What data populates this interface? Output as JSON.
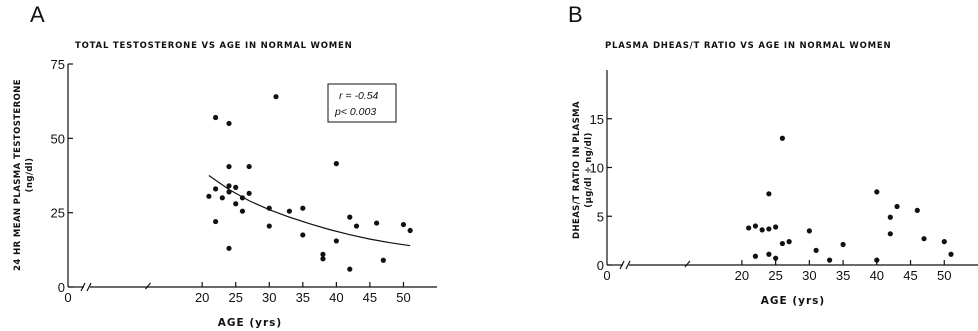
{
  "chart_data": [
    {
      "panel": "A",
      "type": "scatter",
      "title": "TOTAL TESTOSTERONE VS AGE IN NORMAL WOMEN",
      "xlabel": "AGE (yrs)",
      "ylabel": "24 HR MEAN PLASMA TESTOSTERONE",
      "ylabel_unit": "(ng/dl)",
      "xlim": [
        0,
        55
      ],
      "ylim": [
        0,
        75
      ],
      "xticks": [
        0,
        20,
        25,
        30,
        35,
        40,
        45,
        50
      ],
      "yticks": [
        0,
        25,
        50,
        75
      ],
      "annotation": [
        "r = -0.54",
        "p< 0.003"
      ],
      "points": [
        {
          "x": 21,
          "y": 30.5
        },
        {
          "x": 22,
          "y": 57
        },
        {
          "x": 22,
          "y": 33
        },
        {
          "x": 22,
          "y": 22
        },
        {
          "x": 23,
          "y": 30
        },
        {
          "x": 24,
          "y": 55
        },
        {
          "x": 24,
          "y": 40.5
        },
        {
          "x": 24,
          "y": 34
        },
        {
          "x": 24,
          "y": 32
        },
        {
          "x": 24,
          "y": 13
        },
        {
          "x": 25,
          "y": 33.5
        },
        {
          "x": 25,
          "y": 28
        },
        {
          "x": 26,
          "y": 30
        },
        {
          "x": 26,
          "y": 25.5
        },
        {
          "x": 27,
          "y": 40.5
        },
        {
          "x": 27,
          "y": 31.5
        },
        {
          "x": 30,
          "y": 26.5
        },
        {
          "x": 30,
          "y": 20.5
        },
        {
          "x": 31,
          "y": 64
        },
        {
          "x": 33,
          "y": 25.5
        },
        {
          "x": 35,
          "y": 26.5
        },
        {
          "x": 35,
          "y": 17.5
        },
        {
          "x": 38,
          "y": 11
        },
        {
          "x": 38,
          "y": 9.5
        },
        {
          "x": 40,
          "y": 41.5
        },
        {
          "x": 40,
          "y": 15.5
        },
        {
          "x": 42,
          "y": 23.5
        },
        {
          "x": 42,
          "y": 6
        },
        {
          "x": 43,
          "y": 20.5
        },
        {
          "x": 46,
          "y": 21.5
        },
        {
          "x": 47,
          "y": 9
        },
        {
          "x": 50,
          "y": 21
        },
        {
          "x": 51,
          "y": 19
        }
      ],
      "fit_curve": [
        {
          "x": 21,
          "y": 37.5
        },
        {
          "x": 24,
          "y": 32.8
        },
        {
          "x": 27,
          "y": 29
        },
        {
          "x": 30,
          "y": 26
        },
        {
          "x": 33,
          "y": 23.5
        },
        {
          "x": 36,
          "y": 21.3
        },
        {
          "x": 39,
          "y": 19.3
        },
        {
          "x": 42,
          "y": 17.6
        },
        {
          "x": 45,
          "y": 16.1
        },
        {
          "x": 48,
          "y": 14.9
        },
        {
          "x": 51,
          "y": 13.9
        }
      ]
    },
    {
      "panel": "B",
      "type": "scatter",
      "title": "PLASMA DHEAS/T RATIO VS AGE IN NORMAL WOMEN",
      "xlabel": "AGE (yrs)",
      "ylabel": "DHEAS/T RATIO IN PLASMA",
      "ylabel_unit": "(µg/dl ÷ ng/dl)",
      "xlim": [
        0,
        55
      ],
      "ylim": [
        0,
        20
      ],
      "xticks": [
        0,
        20,
        25,
        30,
        35,
        40,
        45,
        50
      ],
      "yticks": [
        0,
        5,
        10,
        15
      ],
      "points": [
        {
          "x": 21,
          "y": 3.8
        },
        {
          "x": 22,
          "y": 4.0
        },
        {
          "x": 22,
          "y": 0.9
        },
        {
          "x": 23,
          "y": 3.6
        },
        {
          "x": 24,
          "y": 3.7
        },
        {
          "x": 24,
          "y": 7.3
        },
        {
          "x": 24,
          "y": 1.1
        },
        {
          "x": 25,
          "y": 3.9
        },
        {
          "x": 25,
          "y": 0.7
        },
        {
          "x": 26,
          "y": 13.0
        },
        {
          "x": 26,
          "y": 2.2
        },
        {
          "x": 27,
          "y": 2.4
        },
        {
          "x": 30,
          "y": 3.5
        },
        {
          "x": 31,
          "y": 1.5
        },
        {
          "x": 33,
          "y": 0.5
        },
        {
          "x": 35,
          "y": 2.1
        },
        {
          "x": 40,
          "y": 7.5
        },
        {
          "x": 40,
          "y": 0.5
        },
        {
          "x": 42,
          "y": 4.9
        },
        {
          "x": 42,
          "y": 3.2
        },
        {
          "x": 43,
          "y": 6.0
        },
        {
          "x": 46,
          "y": 5.6
        },
        {
          "x": 47,
          "y": 2.7
        },
        {
          "x": 50,
          "y": 2.4
        },
        {
          "x": 51,
          "y": 1.1
        }
      ]
    }
  ]
}
